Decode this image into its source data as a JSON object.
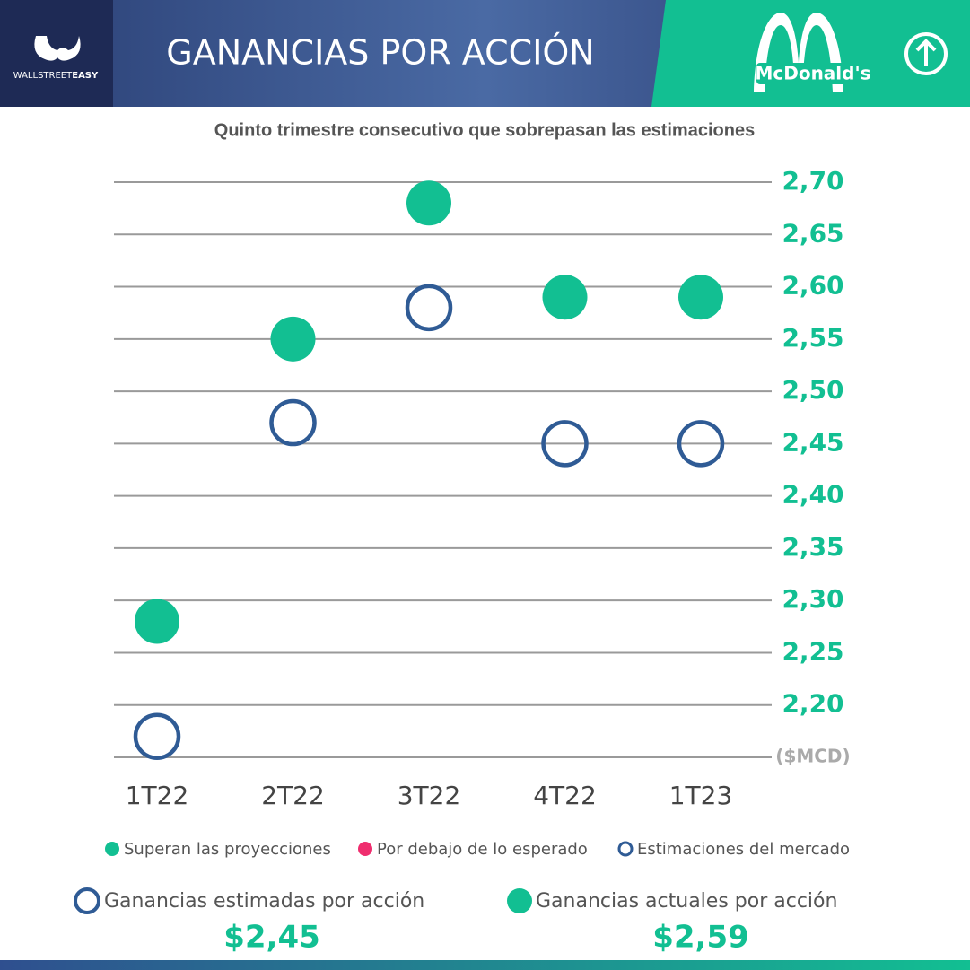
{
  "header": {
    "brand_light": "WALLSTREET",
    "brand_bold": "EASY",
    "title": "GANANCIAS POR ACCIÓN",
    "company": "McDonald's"
  },
  "chart_data": {
    "type": "scatter",
    "subtitle": "Quinto trimestre consecutivo que sobrepasan las estimaciones",
    "categories": [
      "1T22",
      "2T22",
      "3T22",
      "4T22",
      "1T23"
    ],
    "series": [
      {
        "name": "Superan las proyecciones",
        "color": "#12bf92",
        "marker": "filled",
        "values": [
          2.28,
          2.55,
          2.68,
          2.59,
          2.59
        ]
      },
      {
        "name": "Por debajo de lo esperado",
        "color": "#ef2d6e",
        "marker": "filled",
        "values": [
          null,
          null,
          null,
          null,
          null
        ]
      },
      {
        "name": "Estimaciones del mercado",
        "color": "#2f5b95",
        "marker": "open",
        "values": [
          2.17,
          2.47,
          2.58,
          2.45,
          2.45
        ]
      }
    ],
    "ylim": [
      2.15,
      2.7
    ],
    "yticks": [
      {
        "value": 2.15,
        "label": "($MCD)"
      },
      {
        "value": 2.2,
        "label": "2,20"
      },
      {
        "value": 2.25,
        "label": "2,25"
      },
      {
        "value": 2.3,
        "label": "2,30"
      },
      {
        "value": 2.35,
        "label": "2,35"
      },
      {
        "value": 2.4,
        "label": "2,40"
      },
      {
        "value": 2.45,
        "label": "2,45"
      },
      {
        "value": 2.5,
        "label": "2,50"
      },
      {
        "value": 2.55,
        "label": "2,55"
      },
      {
        "value": 2.6,
        "label": "2,60"
      },
      {
        "value": 2.65,
        "label": "2,65"
      },
      {
        "value": 2.7,
        "label": "2,70"
      }
    ],
    "grid": true
  },
  "summary": [
    {
      "label": "Ganancias estimadas por acción",
      "value": "$2,45"
    },
    {
      "label": "Ganancias actuales por acción",
      "value": "$2,59"
    }
  ]
}
